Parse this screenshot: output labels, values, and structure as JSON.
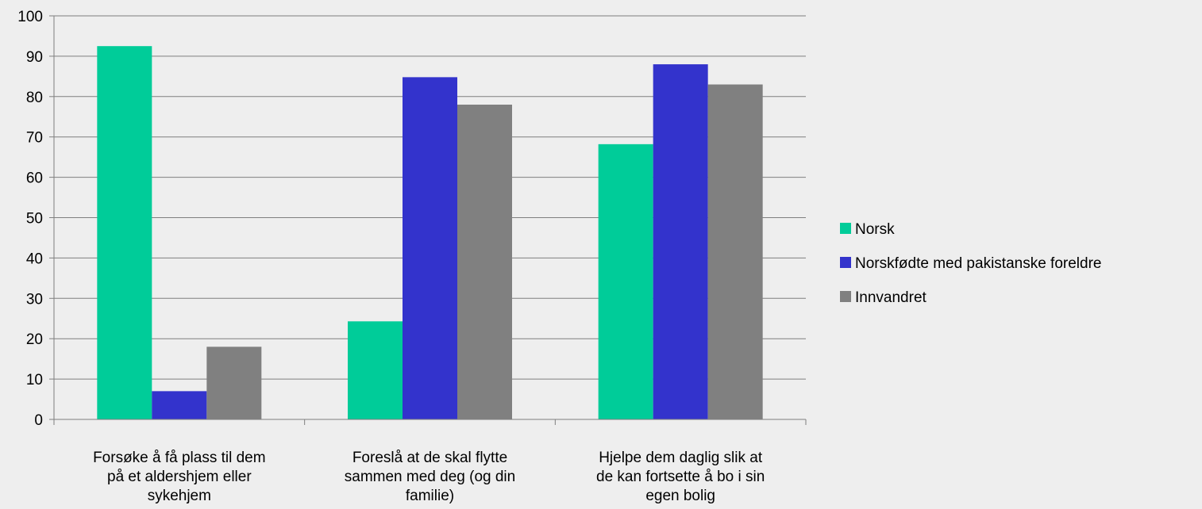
{
  "chart_data": {
    "type": "bar",
    "title": "",
    "xlabel": "",
    "ylabel": "",
    "ylim": [
      0,
      100
    ],
    "yticks": [
      0,
      10,
      20,
      30,
      40,
      50,
      60,
      70,
      80,
      90,
      100
    ],
    "grid": true,
    "legend_position": "right",
    "categories": [
      "Forsøke å få plass til dem på et aldershjem eller sykehjem",
      "Foreslå at de skal flytte sammen med deg (og din familie)",
      "Hjelpe dem daglig slik at de kan fortsette å bo i sin egen bolig"
    ],
    "category_lines": [
      [
        "Forsøke å få plass til dem",
        "på et aldershjem eller",
        "sykehjem"
      ],
      [
        "Foreslå at de skal flytte",
        "sammen med deg (og din",
        "familie)"
      ],
      [
        "Hjelpe dem daglig slik at",
        "de kan fortsette å bo i sin",
        "egen bolig"
      ]
    ],
    "series": [
      {
        "name": "Norsk",
        "color": "#00cc99",
        "values": [
          92.5,
          24.3,
          68.2
        ]
      },
      {
        "name": "Norskfødte med pakistanske foreldre",
        "color": "#3333cc",
        "values": [
          7.0,
          84.8,
          88.0
        ]
      },
      {
        "name": "Innvandret",
        "color": "#808080",
        "values": [
          18.0,
          78.0,
          83.0
        ]
      }
    ]
  }
}
